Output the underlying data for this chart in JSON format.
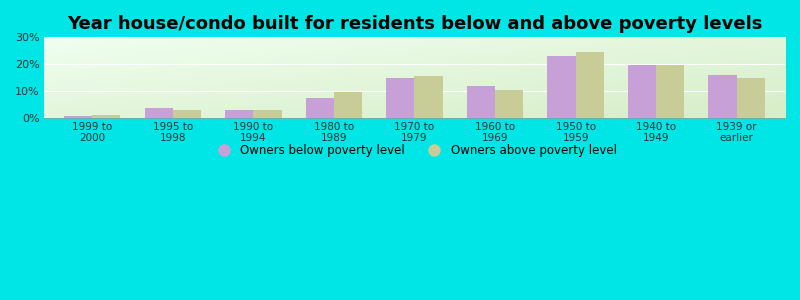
{
  "title": "Year house/condo built for residents below and above poverty levels",
  "categories": [
    "1999 to\n2000",
    "1995 to\n1998",
    "1990 to\n1994",
    "1980 to\n1989",
    "1970 to\n1979",
    "1960 to\n1969",
    "1950 to\n1959",
    "1940 to\n1949",
    "1939 or\nearlier"
  ],
  "below_poverty": [
    0.5,
    3.5,
    3.0,
    7.5,
    15.0,
    12.0,
    23.0,
    19.5,
    16.0
  ],
  "above_poverty": [
    1.0,
    3.0,
    3.0,
    9.5,
    15.5,
    10.5,
    24.5,
    19.5,
    15.0
  ],
  "below_color": "#c8a0d8",
  "above_color": "#c8cc96",
  "ylim": [
    0,
    30
  ],
  "yticks": [
    0,
    10,
    20,
    30
  ],
  "ytick_labels": [
    "0%",
    "10%",
    "20%",
    "30%"
  ],
  "bg_topleft": "#f0fff0",
  "bg_bottomright": "#d8eec8",
  "outer_bg": "#00e5e5",
  "bar_width": 0.35,
  "title_fontsize": 13,
  "grid_color": "#e8e8e8",
  "legend_below_label": "Owners below poverty level",
  "legend_above_label": "Owners above poverty level"
}
